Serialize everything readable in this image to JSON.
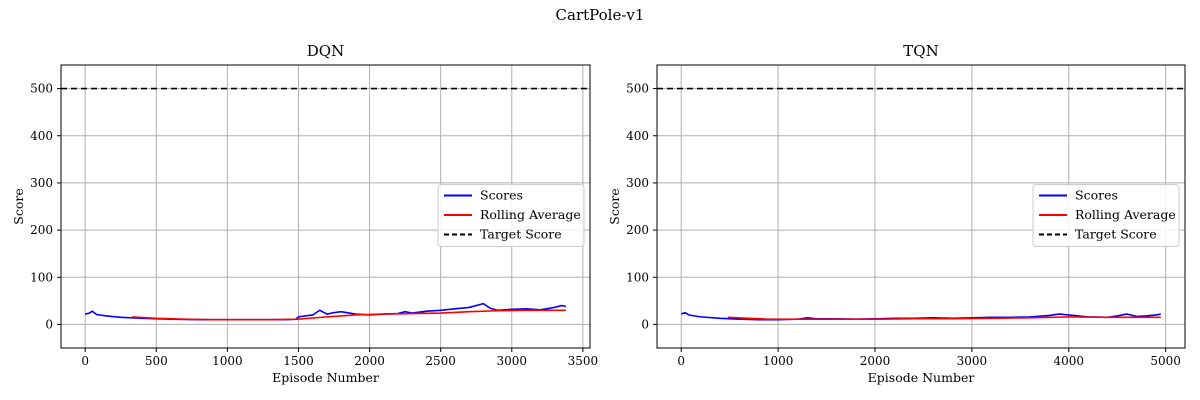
{
  "figure": {
    "title": "CartPole-v1"
  },
  "chart_data": [
    {
      "type": "line",
      "title": "DQN",
      "xlabel": "Episode Number",
      "ylabel": "Score",
      "xlim": [
        -170,
        3550
      ],
      "ylim": [
        -50,
        550
      ],
      "xticks": [
        0,
        500,
        1000,
        1500,
        2000,
        2500,
        3000,
        3500
      ],
      "yticks": [
        0,
        100,
        200,
        300,
        400,
        500
      ],
      "grid": true,
      "legend_position": "center-right",
      "series": [
        {
          "name": "Scores",
          "color": "#0000ff",
          "style": "solid",
          "points": [
            [
              0,
              22
            ],
            [
              30,
              24
            ],
            [
              50,
              28
            ],
            [
              80,
              21
            ],
            [
              150,
              18
            ],
            [
              250,
              15
            ],
            [
              400,
              13
            ],
            [
              600,
              11
            ],
            [
              800,
              10
            ],
            [
              1000,
              10
            ],
            [
              1200,
              10
            ],
            [
              1400,
              10
            ],
            [
              1480,
              11
            ],
            [
              1500,
              16
            ],
            [
              1600,
              20
            ],
            [
              1650,
              30
            ],
            [
              1700,
              22
            ],
            [
              1750,
              25
            ],
            [
              1800,
              27
            ],
            [
              1900,
              22
            ],
            [
              2000,
              20
            ],
            [
              2100,
              22
            ],
            [
              2200,
              23
            ],
            [
              2250,
              27
            ],
            [
              2300,
              24
            ],
            [
              2400,
              28
            ],
            [
              2500,
              30
            ],
            [
              2600,
              33
            ],
            [
              2700,
              36
            ],
            [
              2800,
              44
            ],
            [
              2850,
              34
            ],
            [
              2900,
              30
            ],
            [
              3000,
              32
            ],
            [
              3100,
              33
            ],
            [
              3200,
              31
            ],
            [
              3300,
              36
            ],
            [
              3350,
              40
            ],
            [
              3380,
              38
            ]
          ]
        },
        {
          "name": "Rolling Average",
          "color": "#ff0000",
          "style": "solid",
          "points": [
            [
              330,
              16
            ],
            [
              500,
              13
            ],
            [
              700,
              11
            ],
            [
              900,
              10
            ],
            [
              1100,
              10
            ],
            [
              1300,
              10
            ],
            [
              1500,
              11
            ],
            [
              1700,
              16
            ],
            [
              1900,
              20
            ],
            [
              2100,
              22
            ],
            [
              2300,
              23
            ],
            [
              2500,
              24
            ],
            [
              2700,
              27
            ],
            [
              2900,
              29
            ],
            [
              3100,
              30
            ],
            [
              3300,
              30
            ],
            [
              3380,
              30
            ]
          ]
        },
        {
          "name": "Target Score",
          "color": "#000000",
          "style": "dashed",
          "points": [
            [
              -170,
              500
            ],
            [
              3550,
              500
            ]
          ]
        }
      ]
    },
    {
      "type": "line",
      "title": "TQN",
      "xlabel": "Episode Number",
      "ylabel": "Score",
      "xlim": [
        -250,
        5200
      ],
      "ylim": [
        -50,
        550
      ],
      "xticks": [
        0,
        1000,
        2000,
        3000,
        4000,
        5000
      ],
      "yticks": [
        0,
        100,
        200,
        300,
        400,
        500
      ],
      "grid": true,
      "legend_position": "center-right",
      "series": [
        {
          "name": "Scores",
          "color": "#0000ff",
          "style": "solid",
          "points": [
            [
              0,
              22
            ],
            [
              40,
              25
            ],
            [
              80,
              20
            ],
            [
              200,
              16
            ],
            [
              400,
              13
            ],
            [
              600,
              11
            ],
            [
              800,
              10
            ],
            [
              1000,
              10
            ],
            [
              1200,
              11
            ],
            [
              1300,
              14
            ],
            [
              1400,
              12
            ],
            [
              1600,
              12
            ],
            [
              1800,
              11
            ],
            [
              2000,
              12
            ],
            [
              2200,
              13
            ],
            [
              2400,
              13
            ],
            [
              2600,
              14
            ],
            [
              2800,
              13
            ],
            [
              3000,
              14
            ],
            [
              3200,
              15
            ],
            [
              3400,
              15
            ],
            [
              3600,
              16
            ],
            [
              3800,
              19
            ],
            [
              3900,
              22
            ],
            [
              4000,
              20
            ],
            [
              4200,
              16
            ],
            [
              4400,
              15
            ],
            [
              4500,
              18
            ],
            [
              4600,
              22
            ],
            [
              4700,
              17
            ],
            [
              4800,
              18
            ],
            [
              4900,
              20
            ],
            [
              4950,
              22
            ]
          ]
        },
        {
          "name": "Rolling Average",
          "color": "#ff0000",
          "style": "solid",
          "points": [
            [
              480,
              15
            ],
            [
              700,
              13
            ],
            [
              900,
              11
            ],
            [
              1200,
              11
            ],
            [
              1600,
              11
            ],
            [
              2000,
              11
            ],
            [
              2400,
              12
            ],
            [
              2800,
              12
            ],
            [
              3200,
              13
            ],
            [
              3600,
              14
            ],
            [
              4000,
              16
            ],
            [
              4400,
              15
            ],
            [
              4800,
              15
            ],
            [
              4950,
              15
            ]
          ]
        },
        {
          "name": "Target Score",
          "color": "#000000",
          "style": "dashed",
          "points": [
            [
              -250,
              500
            ],
            [
              5200,
              500
            ]
          ]
        }
      ]
    }
  ]
}
